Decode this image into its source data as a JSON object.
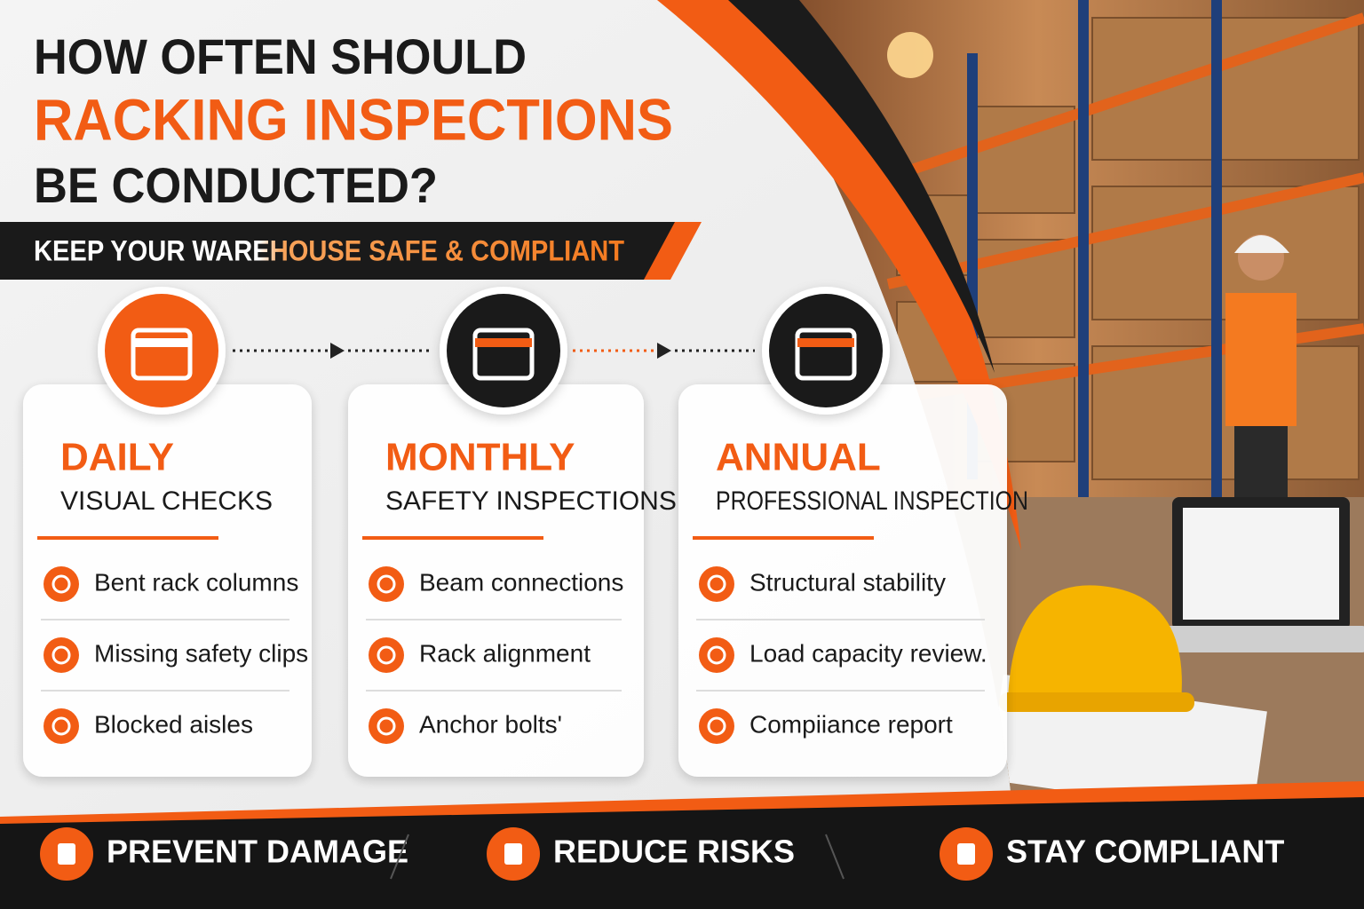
{
  "header": {
    "title_lines": [
      "HOW OFTEN SHOULD",
      "RACKING INSPECTIONS",
      "BE CONDUCTED?"
    ],
    "subtitle": "KEEP YOUR WAREHOUSE SAFE & COMPLIANT"
  },
  "cards": [
    {
      "frequency": "DAILY",
      "heading": "VISUAL CHECKS",
      "items": [
        "Bent rack columns",
        "Missing safety clips",
        "Blocked aisles"
      ]
    },
    {
      "frequency": "MONTHLY",
      "heading": "SAFETY INSPECTIONS",
      "items": [
        "Beam connections",
        "Rack alignment",
        "Anchor bolts'"
      ]
    },
    {
      "frequency": "ANNUAL",
      "heading": "PROFESSIONAL INSPECTION",
      "items": [
        "Structural stability",
        "Load capacity review.",
        "Compiiance report"
      ]
    }
  ],
  "footer": {
    "items": [
      "PREVENT DAMAGE",
      "REDUCE RISKS",
      "STAY COMPLIANT"
    ]
  }
}
